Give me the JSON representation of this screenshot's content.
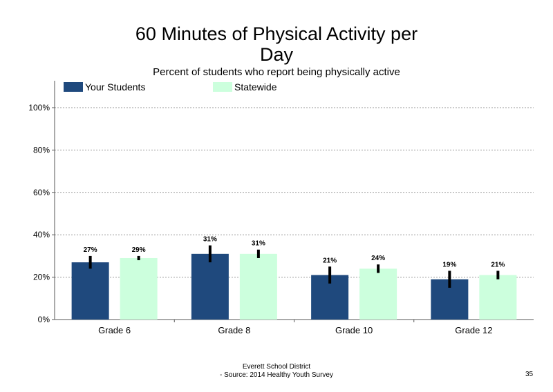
{
  "chart_data": {
    "type": "bar",
    "title_line1": "60 Minutes of Physical Activity per",
    "title_line2": "Day",
    "subtitle": "Percent of students  who report being physically active",
    "categories": [
      "Grade 6",
      "Grade 8",
      "Grade 10",
      "Grade 12"
    ],
    "series": [
      {
        "name": "Your Students",
        "color": "#1f497d",
        "values": [
          27,
          31,
          21,
          19
        ],
        "labels": [
          "27%",
          "31%",
          "21%",
          "19%"
        ],
        "error_low": [
          24,
          27,
          17,
          15
        ],
        "error_high": [
          30,
          35,
          25,
          23
        ]
      },
      {
        "name": "Statewide",
        "color": "#ccffdd",
        "values": [
          29,
          31,
          24,
          21
        ],
        "labels": [
          "29%",
          "31%",
          "24%",
          "21%"
        ],
        "error_low": [
          28,
          29,
          22,
          19
        ],
        "error_high": [
          30,
          33,
          26,
          23
        ]
      }
    ],
    "yticks": [
      0,
      20,
      40,
      60,
      80,
      100
    ],
    "ytick_labels": [
      "0%",
      "20%",
      "40%",
      "60%",
      "80%",
      "100%"
    ],
    "ylim": [
      0,
      110
    ],
    "grid": true,
    "legend_position": "top"
  },
  "footer": {
    "line1": "Everett School District",
    "line2": "- Source: 2014 Healthy  Youth Survey"
  },
  "page_number": "35"
}
